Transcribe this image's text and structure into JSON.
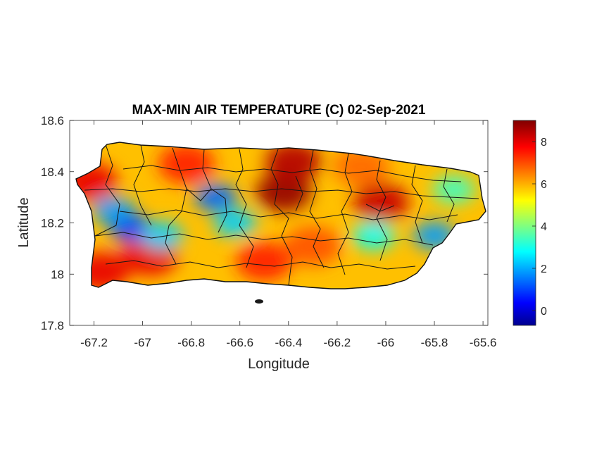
{
  "chart_data": {
    "type": "heatmap",
    "title": "MAX-MIN AIR TEMPERATURE (C) 02-Sep-2021",
    "xlabel": "Longitude",
    "ylabel": "Latitude",
    "xlim": [
      -67.3,
      -65.58
    ],
    "ylim": [
      17.8,
      18.6
    ],
    "x_ticks": [
      {
        "value": -67.2,
        "label": "-67.2"
      },
      {
        "value": -67.0,
        "label": "-67"
      },
      {
        "value": -66.8,
        "label": "-66.8"
      },
      {
        "value": -66.6,
        "label": "-66.6"
      },
      {
        "value": -66.4,
        "label": "-66.4"
      },
      {
        "value": -66.2,
        "label": "-66.2"
      },
      {
        "value": -66.0,
        "label": "-66"
      },
      {
        "value": -65.8,
        "label": "-65.8"
      },
      {
        "value": -65.6,
        "label": "-65.6"
      }
    ],
    "y_ticks": [
      {
        "value": 17.8,
        "label": "17.8"
      },
      {
        "value": 18.0,
        "label": "18"
      },
      {
        "value": 18.2,
        "label": "18.2"
      },
      {
        "value": 18.4,
        "label": "18.4"
      },
      {
        "value": 18.6,
        "label": "18.6"
      }
    ],
    "colorbar": {
      "colormap": "jet",
      "range": [
        -0.7,
        9.0
      ],
      "ticks": [
        {
          "value": 0,
          "label": "0"
        },
        {
          "value": 2,
          "label": "2"
        },
        {
          "value": 4,
          "label": "4"
        },
        {
          "value": 6,
          "label": "6"
        },
        {
          "value": 8,
          "label": "8"
        }
      ]
    },
    "grid": false,
    "hotspots": [
      {
        "lon": -66.42,
        "lat": 18.32,
        "value": 8.8
      },
      {
        "lon": -66.38,
        "lat": 18.44,
        "value": 8.5
      },
      {
        "lon": -66.02,
        "lat": 18.28,
        "value": 8.3
      },
      {
        "lon": -67.22,
        "lat": 18.36,
        "value": 8.0
      },
      {
        "lon": -66.97,
        "lat": 18.07,
        "value": 8.0
      },
      {
        "lon": -67.17,
        "lat": 18.01,
        "value": 8.0
      },
      {
        "lon": -66.82,
        "lat": 18.43,
        "value": 7.5
      },
      {
        "lon": -66.5,
        "lat": 18.05,
        "value": 7.5
      },
      {
        "lon": -66.3,
        "lat": 18.11,
        "value": 7.0
      },
      {
        "lon": -66.1,
        "lat": 18.42,
        "value": 6.8
      }
    ],
    "coldspots": [
      {
        "lon": -67.05,
        "lat": 18.18,
        "value": 1.0
      },
      {
        "lon": -67.12,
        "lat": 18.25,
        "value": 2.0
      },
      {
        "lon": -66.7,
        "lat": 18.3,
        "value": 1.5
      },
      {
        "lon": -66.62,
        "lat": 18.2,
        "value": 2.5
      },
      {
        "lon": -65.8,
        "lat": 18.15,
        "value": 2.0
      },
      {
        "lon": -66.05,
        "lat": 18.15,
        "value": 3.0
      },
      {
        "lon": -65.72,
        "lat": 18.33,
        "value": 3.5
      },
      {
        "lon": -66.92,
        "lat": 18.15,
        "value": 2.5
      }
    ]
  }
}
